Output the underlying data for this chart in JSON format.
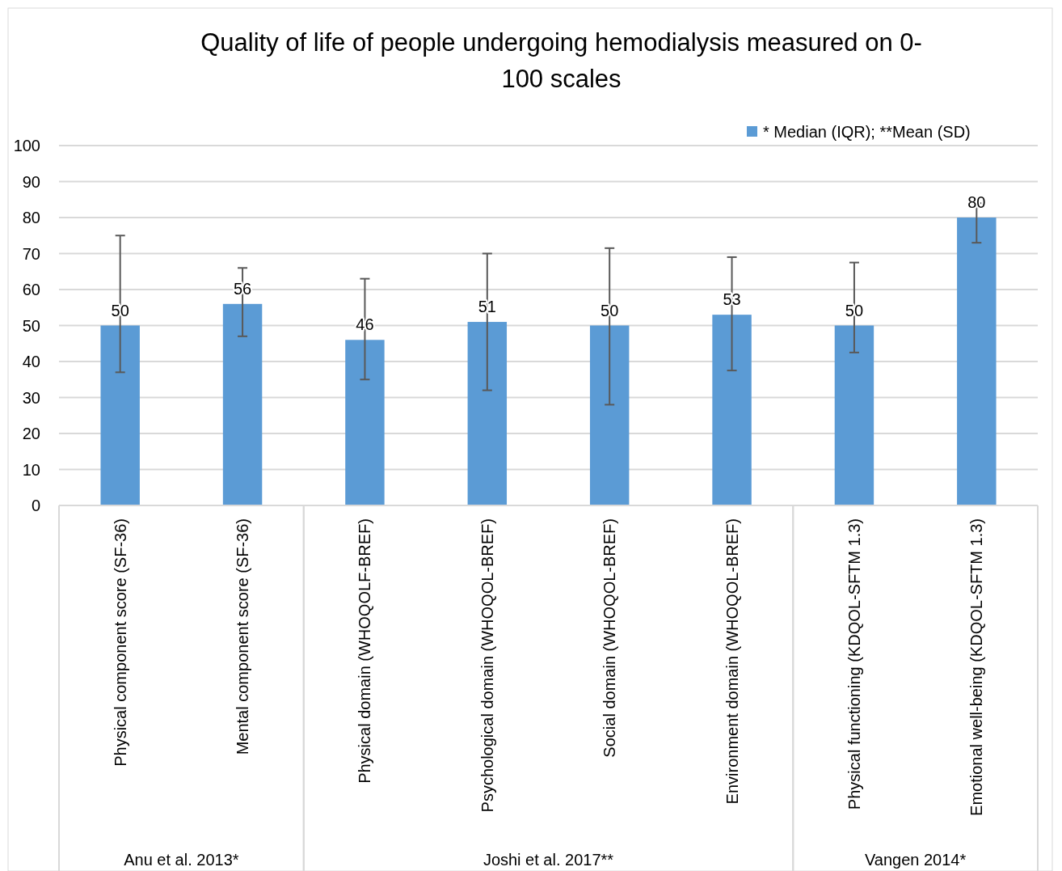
{
  "chart_data": {
    "type": "bar",
    "title": "Quality of life of people undergoing hemodialysis measured on 0-100 scales",
    "categories": [
      "Physical component score (SF-36)",
      "Mental component score (SF-36)",
      "Physical domain (WHOQOLF-BREF)",
      "Psychological domain (WHOQOL-BREF)",
      "Social domain (WHOQOL-BREF)",
      "Environment domain (WHOQOL-BREF)",
      "Physical functioning (KDQOL-SFTM 1.3)",
      "Emotional well-being (KDQOL-SFTM 1.3)"
    ],
    "series": [
      {
        "name": "* Median (IQR); **Mean (SD)",
        "color": "#5b9bd5",
        "values": [
          50,
          56,
          46,
          51,
          50,
          53,
          50,
          80
        ],
        "errors": [
          [
            37,
            75
          ],
          [
            47,
            66
          ],
          [
            35,
            63
          ],
          [
            32,
            70
          ],
          [
            28,
            71.5
          ],
          [
            37.5,
            69
          ],
          [
            42.5,
            67.5
          ],
          [
            73,
            84
          ]
        ]
      }
    ],
    "annotations": [
      "Anu et al. 2013*",
      "Joshi et al. 2017**",
      "Vangen 2014*"
    ],
    "ylim": [
      0,
      100
    ],
    "yticks": [
      0,
      10,
      20,
      30,
      40,
      50,
      60,
      70,
      80,
      90,
      100
    ],
    "grid": "y",
    "legend": "top right",
    "data_labels": true
  }
}
